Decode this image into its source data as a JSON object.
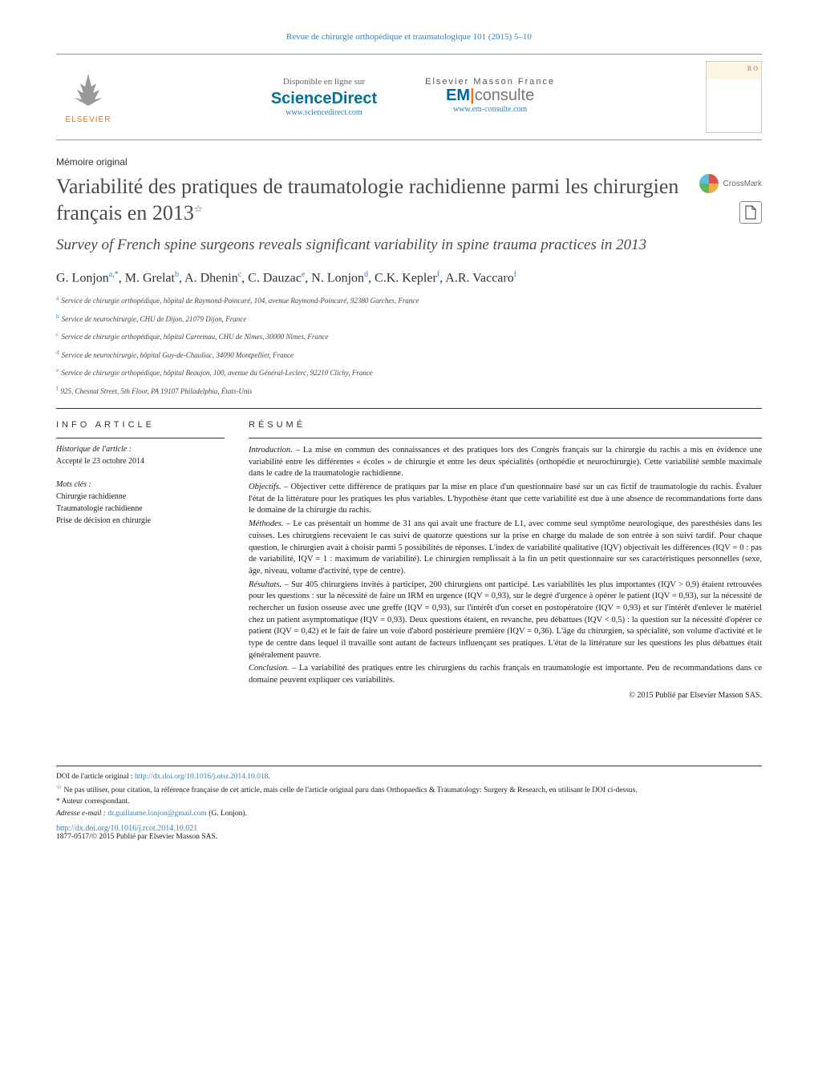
{
  "journal_ref": "Revue de chirurgie orthopédique et traumatologique 101 (2015) 5–10",
  "header": {
    "elsevier_label": "ELSEVIER",
    "sd_label": "Disponible en ligne sur",
    "sd_brand": "ScienceDirect",
    "sd_url": "www.sciencedirect.com",
    "em_label": "Elsevier Masson France",
    "em_brand_em": "EM",
    "em_brand_consulte": "consulte",
    "em_url": "www.em-consulte.com"
  },
  "article_type": "Mémoire original",
  "title_fr": "Variabilité des pratiques de traumatologie rachidienne parmi les chirurgien français en 2013",
  "title_star": "☆",
  "title_en": "Survey of French spine surgeons reveals significant variability in spine trauma practices in 2013",
  "crossmark_label": "CrossMark",
  "authors_html": "G. Lonjon<sup>a,*</sup>, M. Grelat<sup>b</sup>, A. Dhenin<sup>c</sup>, C. Dauzac<sup>e</sup>, N. Lonjon<sup>d</sup>, C.K. Kepler<sup>f</sup>, A.R. Vaccaro<sup>f</sup>",
  "affiliations": [
    {
      "sup": "a",
      "text": "Service de chirurgie orthopédique, hôpital de Raymond-Poincaré, 104, avenue Raymond-Poincaré, 92380 Garches, France"
    },
    {
      "sup": "b",
      "text": "Service de neurochirurgie, CHU de Dijon, 21079 Dijon, France"
    },
    {
      "sup": "c",
      "text": "Service de chirurgie orthopédique, hôpital Carremau, CHU de Nîmes, 30000 Nîmes, France"
    },
    {
      "sup": "d",
      "text": "Service de neurochirurgie, hôpital Guy-de-Chauliac, 34090 Montpellier, France"
    },
    {
      "sup": "e",
      "text": "Service de chirurgie orthopédique, hôpital Beaujon, 100, avenue du Général-Leclerc, 92210 Clichy, France"
    },
    {
      "sup": "f",
      "text": "925, Chesnut Street, 5th Floor, PA 19107 Philadelphia, États-Unis"
    }
  ],
  "info_heading": "INFO ARTICLE",
  "history_label": "Historique de l'article :",
  "history_text": "Accepté le 23 octobre 2014",
  "keywords_label": "Mots clés :",
  "keywords": [
    "Chirurgie rachidienne",
    "Traumatologie rachidienne",
    "Prise de décision en chirurgie"
  ],
  "resume_heading": "RÉSUMÉ",
  "abstract": {
    "intro_label": "Introduction. –",
    "intro": "La mise en commun des connaissances et des pratiques lors des Congrès français sur la chirurgie du rachis a mis en évidence une variabilité entre les différentes « écoles » de chirurgie et entre les deux spécialités (orthopédie et neurochirurgie). Cette variabilité semble maximale dans le cadre de la traumatologie rachidienne.",
    "obj_label": "Objectifs. –",
    "obj": "Objectiver cette différence de pratiques par la mise en place d'un questionnaire basé sur un cas fictif de traumatologie du rachis. Évaluer l'état de la littérature pour les pratiques les plus variables. L'hypothèse étant que cette variabilité est due à une absence de recommandations forte dans le domaine de la chirurgie du rachis.",
    "meth_label": "Méthodes. –",
    "meth": "Le cas présentait un homme de 31 ans qui avait une fracture de L1, avec comme seul symptôme neurologique, des paresthésies dans les cuisses. Les chirurgiens recevaient le cas suivi de quatorze questions sur la prise en charge du malade de son entrée à son suivi tardif. Pour chaque question, le chirurgien avait à choisir parmi 5 possibilités de réponses. L'index de variabilité qualitative (IQV) objectivait les différences (IQV = 0 : pas de variabilité, IQV = 1 : maximum de variabilité). Le chirurgien remplissait à la fin un petit questionnaire sur ses caractéristiques personnelles (sexe, âge, niveau, volume d'activité, type de centre).",
    "res_label": "Résultats. –",
    "res": "Sur 405 chirurgiens invités à participer, 200 chirurgiens ont participé. Les variabilités les plus importantes (IQV > 0,9) étaient retrouvées pour les questions : sur la nécessité de faire un IRM en urgence (IQV = 0,93), sur le degré d'urgence à opérer le patient (IQV = 0,93), sur la nécessité de rechercher un fusion osseuse avec une greffe (IQV = 0,93), sur l'intérêt d'un corset en postopératoire (IQV = 0,93) et sur l'intérêt d'enlever le matériel chez un patient asymptomatique (IQV = 0,93). Deux questions étaient, en revanche, peu débattues (IQV < 0,5) : la question sur la nécessité d'opérer ce patient (IQV = 0,42) et le fait de faire un voie d'abord postérieure première (IQV = 0,36). L'âge du chirurgien, sa spécialité, son volume d'activité et le type de centre dans lequel il travaille sont autant de facteurs influençant ses pratiques. L'état de la littérature sur les questions les plus débattues était généralement pauvre.",
    "concl_label": "Conclusion. –",
    "concl": "La variabilité des pratiques entre les chirurgiens du rachis français en traumatologie est importante. Peu de recommandations dans ce domaine peuvent expliquer ces variabilités."
  },
  "copyright": "© 2015 Publié par Elsevier Masson SAS.",
  "footer": {
    "doi_orig_label": "DOI de l'article original :",
    "doi_orig_url": "http://dx.doi.org/10.1016/j.otsr.2014.10.018",
    "star_note": "Ne pas utiliser, pour citation, la référence française de cet article, mais celle de l'article original paru dans Orthopaedics & Traumatology: Surgery & Research, en utilisant le DOI ci-dessus.",
    "corr_label": "Auteur correspondant.",
    "email_label": "Adresse e-mail :",
    "email": "dr.guillaume.lonjon@gmail.com",
    "email_name": "(G. Lonjon).",
    "doi_url": "http://dx.doi.org/10.1016/j.rcot.2014.10.021",
    "issn": "1877-0517/© 2015 Publié par Elsevier Masson SAS."
  }
}
